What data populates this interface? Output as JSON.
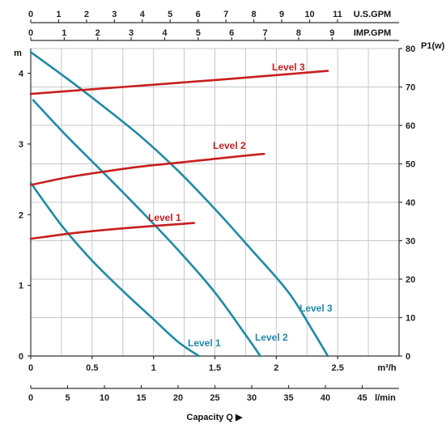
{
  "chart_data": {
    "type": "line",
    "title": "",
    "axes": {
      "top_usgpm": {
        "label": "U.S.GPM",
        "ticks": [
          "0",
          "1",
          "2",
          "3",
          "4",
          "5",
          "6",
          "7",
          "8",
          "9",
          "10",
          "11"
        ]
      },
      "top_impgpm": {
        "label": "IMP.GPM",
        "ticks": [
          "0",
          "1",
          "2",
          "3",
          "4",
          "5",
          "6",
          "7",
          "8",
          "9"
        ]
      },
      "left_head": {
        "label": "m",
        "ticks": [
          "0",
          "1",
          "2",
          "3",
          "4"
        ],
        "range": [
          0,
          4.35
        ]
      },
      "right_power": {
        "label": "P1(w)",
        "ticks": [
          "0",
          "10",
          "20",
          "30",
          "40",
          "50",
          "60",
          "70",
          "80"
        ],
        "range": [
          0,
          80
        ]
      },
      "bottom_m3h": {
        "label": "m³/h",
        "ticks": [
          "0",
          "0.5",
          "1",
          "1.5",
          "2",
          "2.5"
        ],
        "range": [
          0,
          3.0
        ]
      },
      "bottom_lmin": {
        "label": "l/min",
        "ticks": [
          "0",
          "5",
          "10",
          "15",
          "20",
          "25",
          "30",
          "35",
          "40",
          "45"
        ]
      },
      "bottom_title": "Capacity Q ▶"
    },
    "grid": true,
    "head_series": [
      {
        "name": "Level 1",
        "color": "#1e8aa8",
        "x": [
          0,
          0.25,
          0.5,
          0.75,
          1.0,
          1.2,
          1.37
        ],
        "y": [
          2.45,
          1.85,
          1.35,
          0.92,
          0.52,
          0.2,
          0
        ]
      },
      {
        "name": "Level 2",
        "color": "#1e8aa8",
        "x": [
          0.02,
          0.3,
          0.6,
          0.9,
          1.2,
          1.5,
          1.75,
          1.87
        ],
        "y": [
          3.62,
          3.1,
          2.58,
          2.05,
          1.5,
          0.9,
          0.3,
          0
        ]
      },
      {
        "name": "Level 3",
        "color": "#1e8aa8",
        "x": [
          0,
          0.3,
          0.6,
          0.9,
          1.2,
          1.5,
          1.8,
          2.1,
          2.3,
          2.42
        ],
        "y": [
          4.3,
          3.92,
          3.52,
          3.1,
          2.62,
          2.08,
          1.5,
          0.9,
          0.35,
          0
        ]
      }
    ],
    "power_series": [
      {
        "name": "Level 1",
        "color": "#c81e1e",
        "x": [
          0,
          0.3,
          0.6,
          0.9,
          1.2,
          1.33
        ],
        "y": [
          30.5,
          31.8,
          32.8,
          33.6,
          34.3,
          34.6
        ]
      },
      {
        "name": "Level 2",
        "color": "#c81e1e",
        "x": [
          0,
          0.3,
          0.6,
          0.9,
          1.2,
          1.5,
          1.8,
          1.9
        ],
        "y": [
          44.5,
          46.5,
          48.0,
          49.3,
          50.3,
          51.3,
          52.3,
          52.6
        ]
      },
      {
        "name": "Level 3",
        "color": "#c81e1e",
        "x": [
          0,
          0.5,
          1.0,
          1.5,
          2.0,
          2.42
        ],
        "y": [
          68.2,
          69.4,
          70.6,
          71.8,
          73.1,
          74.2
        ]
      }
    ],
    "labels": {
      "power_level1": "Level 1",
      "power_level2": "Level 2",
      "power_level3": "Level 3",
      "head_level1": "Level 1",
      "head_level2": "Level 2",
      "head_level3": "Level 3"
    }
  }
}
